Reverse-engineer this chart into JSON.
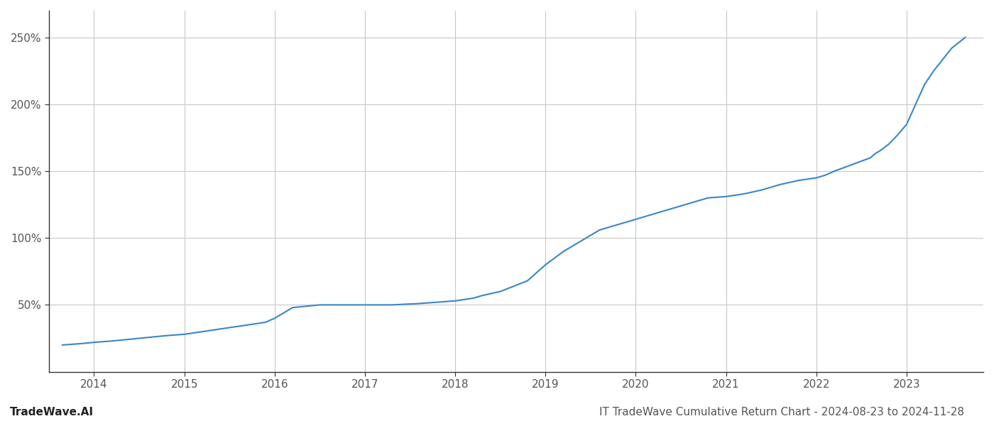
{
  "title": "IT TradeWave Cumulative Return Chart - 2024-08-23 to 2024-11-28",
  "watermark": "TradeWave.AI",
  "line_color": "#3a86c8",
  "background_color": "#ffffff",
  "grid_color": "#c8c8c8",
  "x_years": [
    2014,
    2015,
    2016,
    2017,
    2018,
    2019,
    2020,
    2021,
    2022,
    2023
  ],
  "x_values": [
    2013.65,
    2013.85,
    2014.0,
    2014.2,
    2014.5,
    2014.8,
    2015.0,
    2015.2,
    2015.5,
    2015.7,
    2015.9,
    2016.0,
    2016.1,
    2016.2,
    2016.5,
    2016.8,
    2017.0,
    2017.3,
    2017.6,
    2017.8,
    2018.0,
    2018.1,
    2018.2,
    2018.3,
    2018.5,
    2018.65,
    2018.8,
    2019.0,
    2019.2,
    2019.4,
    2019.6,
    2019.8,
    2020.0,
    2020.2,
    2020.4,
    2020.5,
    2020.65,
    2020.8,
    2021.0,
    2021.2,
    2021.4,
    2021.6,
    2021.8,
    2022.0,
    2022.1,
    2022.2,
    2022.4,
    2022.6,
    2022.65,
    2022.7,
    2022.8,
    2022.9,
    2023.0,
    2023.1,
    2023.2,
    2023.3,
    2023.5,
    2023.65
  ],
  "y_values": [
    20,
    21,
    22,
    23,
    25,
    27,
    28,
    30,
    33,
    35,
    37,
    40,
    44,
    48,
    50,
    50,
    50,
    50,
    51,
    52,
    53,
    54,
    55,
    57,
    60,
    64,
    68,
    80,
    90,
    98,
    106,
    110,
    114,
    118,
    122,
    124,
    127,
    130,
    131,
    133,
    136,
    140,
    143,
    145,
    147,
    150,
    155,
    160,
    163,
    165,
    170,
    177,
    185,
    200,
    215,
    225,
    242,
    250
  ],
  "ylim": [
    0,
    270
  ],
  "yticks": [
    50,
    100,
    150,
    200,
    250
  ],
  "xlim": [
    2013.5,
    2023.85
  ],
  "line_width": 1.5,
  "title_fontsize": 11,
  "watermark_fontsize": 11,
  "tick_fontsize": 11,
  "axis_color": "#555555"
}
